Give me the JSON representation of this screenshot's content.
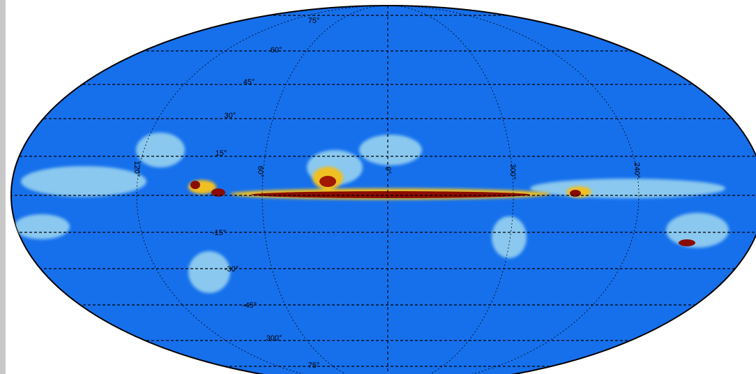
{
  "latitude_labels": [
    "75°",
    "60°",
    "45°",
    "30°",
    "15°",
    "-15°",
    "-30°",
    "-45°",
    "300°",
    "75°"
  ],
  "longitude_labels": [
    "120°",
    "60°",
    "0°",
    "300°",
    "240°"
  ]
}
